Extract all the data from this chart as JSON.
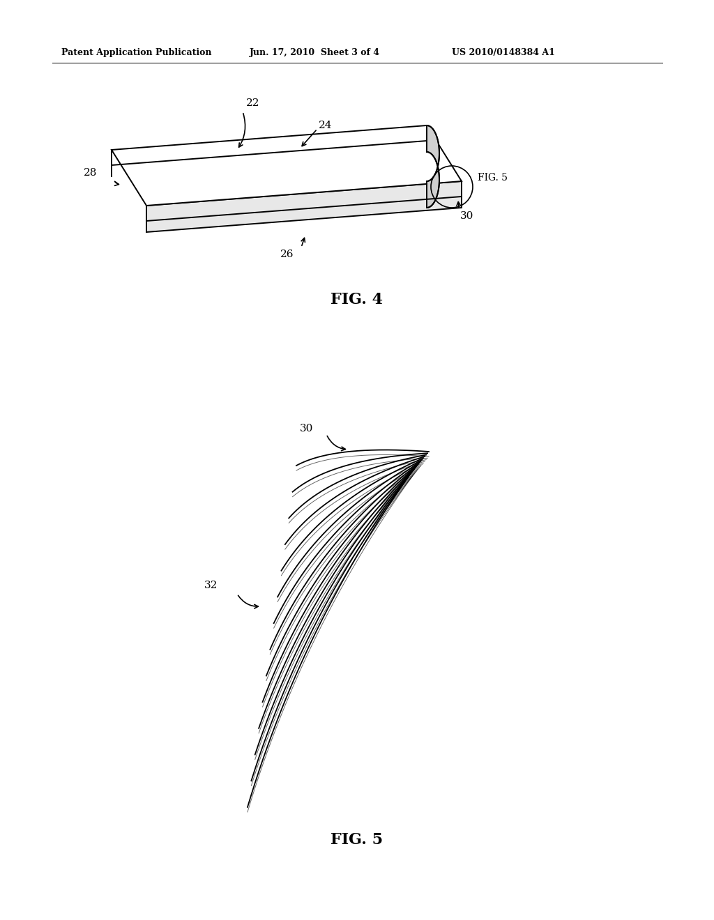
{
  "bg_color": "#ffffff",
  "fig_width": 10.24,
  "fig_height": 13.2,
  "header_text1": "Patent Application Publication",
  "header_text2": "Jun. 17, 2010  Sheet 3 of 4",
  "header_text3": "US 2010/0148384 A1",
  "fig4_label": "FIG. 4",
  "fig5_label": "FIG. 5",
  "label_22": "22",
  "label_24": "24",
  "label_26": "26",
  "label_28": "28",
  "label_30": "30",
  "label_30b": "30",
  "label_32": "32",
  "fig5_ref": "FIG. 5"
}
